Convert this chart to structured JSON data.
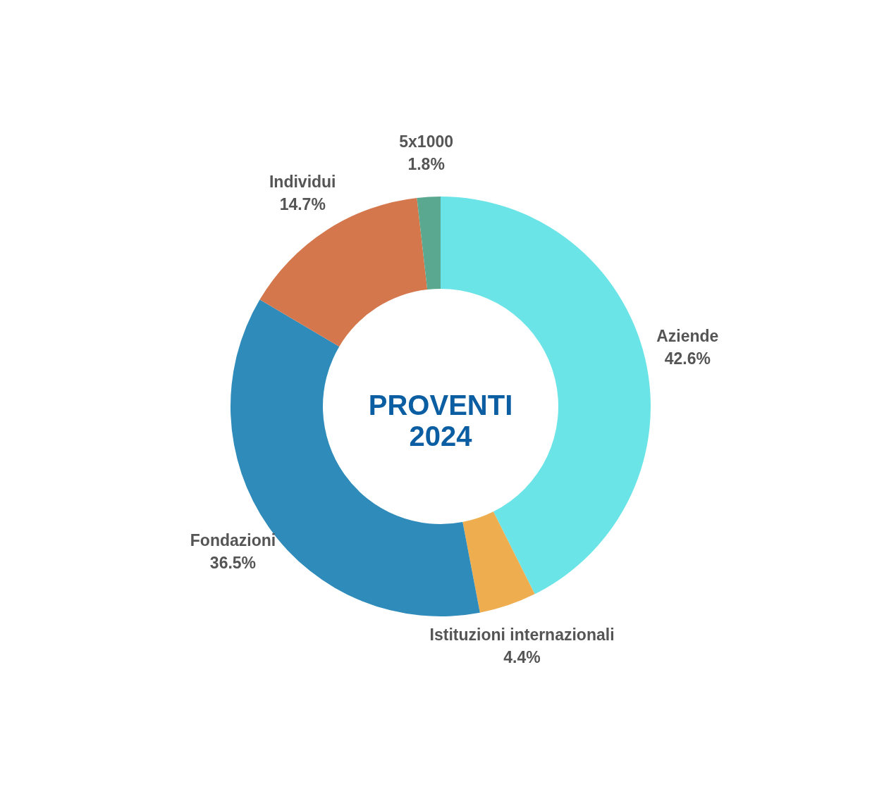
{
  "chart_data": {
    "type": "donut",
    "title": "PROVENTI 2024",
    "categories": [
      "Aziende",
      "Istituzioni internazionali",
      "Fondazioni",
      "Individui",
      "5x1000"
    ],
    "values": [
      42.6,
      4.4,
      36.5,
      14.7,
      1.8
    ],
    "value_labels": [
      "42.6%",
      "4.4%",
      "36.5%",
      "14.7%",
      "1.8%"
    ],
    "colors": [
      "#6ae4e6",
      "#eeae50",
      "#2e8bba",
      "#d5774c",
      "#5aa88f"
    ]
  }
}
